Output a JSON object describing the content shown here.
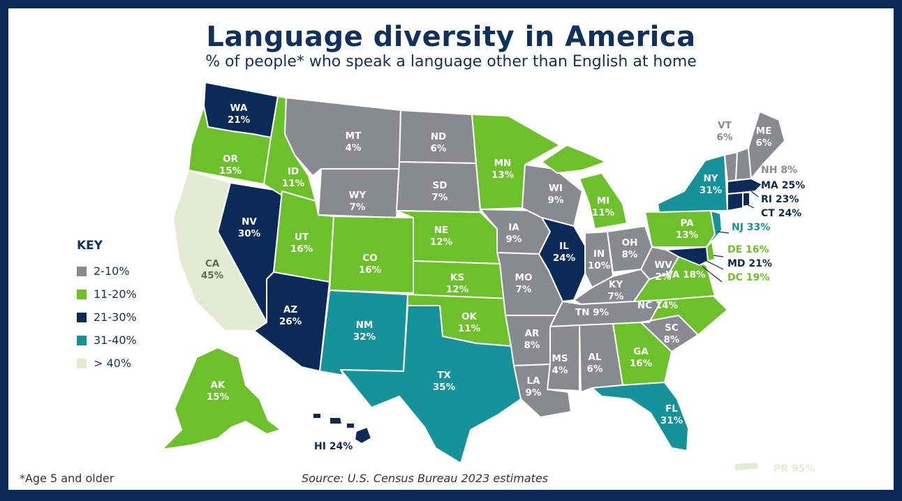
{
  "title": "Language diversity in America",
  "subtitle": "% of people* who speak a language other than English at home",
  "key": {
    "title": "KEY",
    "items": [
      {
        "label": "2-10%",
        "color": "#878a8f"
      },
      {
        "label": "11-20%",
        "color": "#6cc12a"
      },
      {
        "label": "21-30%",
        "color": "#0b2a57"
      },
      {
        "label": "31-40%",
        "color": "#15929a"
      },
      {
        "label": "> 40%",
        "color": "#e3ecd2"
      }
    ]
  },
  "colors": {
    "gray": "#878a8f",
    "green": "#6cc12a",
    "navy": "#0b2a57",
    "teal": "#15929a",
    "pale": "#e3ecd2"
  },
  "states": [
    {
      "abbr": "WA",
      "value": "21%",
      "pct": 21
    },
    {
      "abbr": "OR",
      "value": "15%",
      "pct": 15
    },
    {
      "abbr": "CA",
      "value": "45%",
      "pct": 45
    },
    {
      "abbr": "NV",
      "value": "30%",
      "pct": 30
    },
    {
      "abbr": "ID",
      "value": "11%",
      "pct": 11
    },
    {
      "abbr": "MT",
      "value": "4%",
      "pct": 4
    },
    {
      "abbr": "WY",
      "value": "7%",
      "pct": 7
    },
    {
      "abbr": "UT",
      "value": "16%",
      "pct": 16
    },
    {
      "abbr": "AZ",
      "value": "26%",
      "pct": 26
    },
    {
      "abbr": "CO",
      "value": "16%",
      "pct": 16
    },
    {
      "abbr": "NM",
      "value": "32%",
      "pct": 32
    },
    {
      "abbr": "ND",
      "value": "6%",
      "pct": 6
    },
    {
      "abbr": "SD",
      "value": "7%",
      "pct": 7
    },
    {
      "abbr": "NE",
      "value": "12%",
      "pct": 12
    },
    {
      "abbr": "KS",
      "value": "12%",
      "pct": 12
    },
    {
      "abbr": "OK",
      "value": "11%",
      "pct": 11
    },
    {
      "abbr": "TX",
      "value": "35%",
      "pct": 35
    },
    {
      "abbr": "MN",
      "value": "13%",
      "pct": 13
    },
    {
      "abbr": "IA",
      "value": "9%",
      "pct": 9
    },
    {
      "abbr": "MO",
      "value": "7%",
      "pct": 7
    },
    {
      "abbr": "AR",
      "value": "8%",
      "pct": 8
    },
    {
      "abbr": "LA",
      "value": "9%",
      "pct": 9
    },
    {
      "abbr": "WI",
      "value": "9%",
      "pct": 9
    },
    {
      "abbr": "IL",
      "value": "24%",
      "pct": 24
    },
    {
      "abbr": "MI",
      "value": "11%",
      "pct": 11
    },
    {
      "abbr": "IN",
      "value": "10%",
      "pct": 10
    },
    {
      "abbr": "OH",
      "value": "8%",
      "pct": 8
    },
    {
      "abbr": "KY",
      "value": "7%",
      "pct": 7
    },
    {
      "abbr": "TN",
      "value": "9%",
      "pct": 9
    },
    {
      "abbr": "MS",
      "value": "4%",
      "pct": 4
    },
    {
      "abbr": "AL",
      "value": "6%",
      "pct": 6
    },
    {
      "abbr": "GA",
      "value": "16%",
      "pct": 16
    },
    {
      "abbr": "FL",
      "value": "31%",
      "pct": 31
    },
    {
      "abbr": "SC",
      "value": "8%",
      "pct": 8
    },
    {
      "abbr": "NC",
      "value": "14%",
      "pct": 14
    },
    {
      "abbr": "VA",
      "value": "18%",
      "pct": 18
    },
    {
      "abbr": "WV",
      "value": "2%",
      "pct": 2
    },
    {
      "abbr": "PA",
      "value": "13%",
      "pct": 13
    },
    {
      "abbr": "NY",
      "value": "31%",
      "pct": 31
    },
    {
      "abbr": "VT",
      "value": "6%",
      "pct": 6
    },
    {
      "abbr": "ME",
      "value": "6%",
      "pct": 6
    },
    {
      "abbr": "NH",
      "value": "8%",
      "pct": 8
    },
    {
      "abbr": "MA",
      "value": "25%",
      "pct": 25
    },
    {
      "abbr": "RI",
      "value": "23%",
      "pct": 23
    },
    {
      "abbr": "CT",
      "value": "24%",
      "pct": 24
    },
    {
      "abbr": "NJ",
      "value": "33%",
      "pct": 33
    },
    {
      "abbr": "DE",
      "value": "16%",
      "pct": 16
    },
    {
      "abbr": "MD",
      "value": "21%",
      "pct": 21
    },
    {
      "abbr": "DC",
      "value": "19%",
      "pct": 19
    },
    {
      "abbr": "AK",
      "value": "15%",
      "pct": 15
    },
    {
      "abbr": "HI",
      "value": "24%",
      "pct": 24
    },
    {
      "abbr": "PR",
      "value": "95%",
      "pct": 95
    }
  ],
  "footnote": "*Age 5 and older",
  "source": "Source: U.S. Census Bureau 2023 estimates"
}
